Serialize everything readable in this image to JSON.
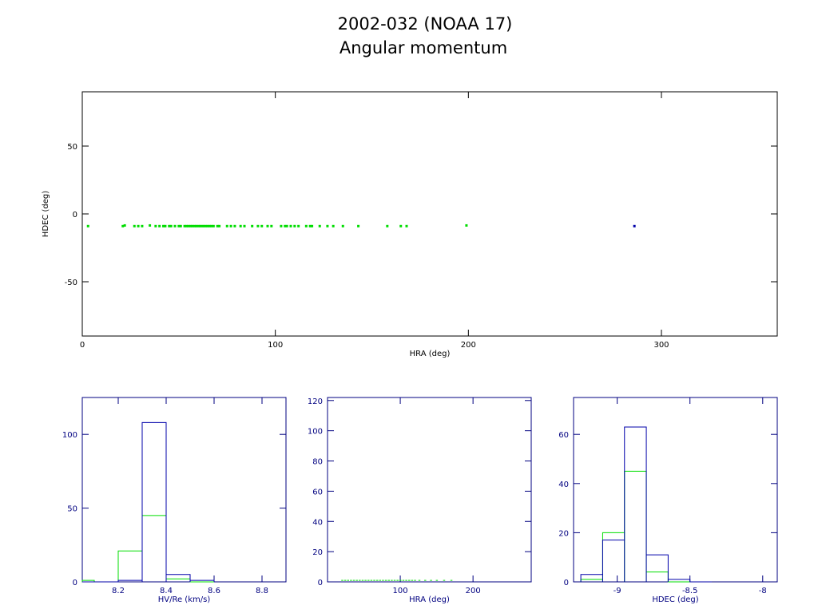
{
  "figure": {
    "title": "2002-032 (NOAA 17)",
    "subtitle": "Angular momentum"
  },
  "colors": {
    "green": "#00dd00",
    "blue": "#0000aa",
    "main_axis": "#000000",
    "hist_axis": "#000080"
  },
  "chart_data": [
    {
      "type": "scatter",
      "xlabel": "HRA (deg)",
      "ylabel": "HDEC (deg)",
      "xlim": [
        0,
        360
      ],
      "ylim": [
        -90,
        90
      ],
      "xticks": [
        0,
        100,
        200,
        300
      ],
      "yticks": [
        -50,
        0,
        50
      ],
      "series": [
        {
          "color": "green",
          "x": [
            3,
            21,
            22,
            27,
            29,
            31,
            35,
            38,
            40,
            42,
            43,
            45,
            46,
            48,
            50,
            51,
            53,
            54,
            55,
            56,
            57,
            58,
            59,
            60,
            61,
            62,
            63,
            64,
            65,
            66,
            67,
            68,
            70,
            71,
            75,
            77,
            79,
            82,
            84,
            88,
            91,
            93,
            96,
            98,
            103,
            105,
            106,
            108,
            110,
            112,
            116,
            118,
            119,
            123,
            127,
            130,
            135,
            143,
            158,
            165,
            168,
            199
          ],
          "y": [
            -9,
            -9,
            -8.5,
            -9,
            -9,
            -9,
            -8.5,
            -9,
            -9,
            -9,
            -9,
            -9,
            -9,
            -9,
            -9,
            -9,
            -9,
            -9,
            -9,
            -9,
            -9,
            -9,
            -9,
            -9,
            -9,
            -9,
            -9,
            -9,
            -9,
            -9,
            -9,
            -9,
            -9,
            -9,
            -9,
            -9,
            -9,
            -9,
            -9,
            -9,
            -9,
            -9,
            -9,
            -9,
            -9,
            -9,
            -9,
            -9,
            -9,
            -9,
            -9,
            -9,
            -9,
            -9,
            -9,
            -9,
            -9,
            -9,
            -9,
            -9,
            -9,
            -8.5
          ]
        },
        {
          "color": "blue",
          "x": [
            286
          ],
          "y": [
            -9
          ]
        }
      ]
    },
    {
      "type": "histogram",
      "xlabel": "HV/Re (km/s)",
      "ylabel": "",
      "xlim": [
        8.05,
        8.9
      ],
      "ylim": [
        0,
        125
      ],
      "xticks": [
        8.2,
        8.4,
        8.6,
        8.8
      ],
      "yticks": [
        0,
        50,
        100
      ],
      "bin_edges": [
        8.0,
        8.1,
        8.2,
        8.3,
        8.4,
        8.5,
        8.6
      ],
      "series": [
        {
          "color": "green",
          "counts": [
            1,
            0,
            21,
            45,
            2,
            0
          ]
        },
        {
          "color": "blue",
          "counts": [
            0,
            0,
            1,
            108,
            5,
            1
          ]
        }
      ]
    },
    {
      "type": "histogram",
      "xlabel": "HRA (deg)",
      "ylabel": "",
      "xlim": [
        0,
        280
      ],
      "ylim": [
        0,
        122
      ],
      "xticks": [
        100,
        200
      ],
      "yticks": [
        0,
        20,
        40,
        60,
        80,
        100,
        120
      ],
      "series": [
        {
          "color": "green",
          "x": [
            20,
            24,
            28,
            32,
            36,
            40,
            44,
            48,
            52,
            56,
            60,
            64,
            68,
            72,
            76,
            80,
            84,
            88,
            92,
            96,
            100,
            104,
            108,
            112,
            116,
            120,
            126,
            134,
            142,
            150,
            160,
            170
          ],
          "counts": [
            1,
            1,
            1,
            1,
            1,
            1,
            1,
            1,
            1,
            1,
            1,
            1,
            1,
            1,
            1,
            1,
            1,
            1,
            1,
            1,
            1,
            1,
            1,
            1,
            1,
            1,
            1,
            1,
            1,
            1,
            1,
            1
          ]
        }
      ]
    },
    {
      "type": "histogram",
      "xlabel": "HDEC (deg)",
      "ylabel": "",
      "xlim": [
        -9.3,
        -7.9
      ],
      "ylim": [
        0,
        75
      ],
      "xticks": [
        -9,
        -8.5,
        -8
      ],
      "yticks": [
        0,
        20,
        40,
        60
      ],
      "bin_edges": [
        -9.25,
        -9.1,
        -8.95,
        -8.8,
        -8.65,
        -8.5,
        -8.35
      ],
      "series": [
        {
          "color": "green",
          "counts": [
            1,
            20,
            45,
            4,
            0,
            0
          ]
        },
        {
          "color": "blue",
          "counts": [
            3,
            17,
            63,
            11,
            1,
            0
          ]
        }
      ]
    }
  ]
}
